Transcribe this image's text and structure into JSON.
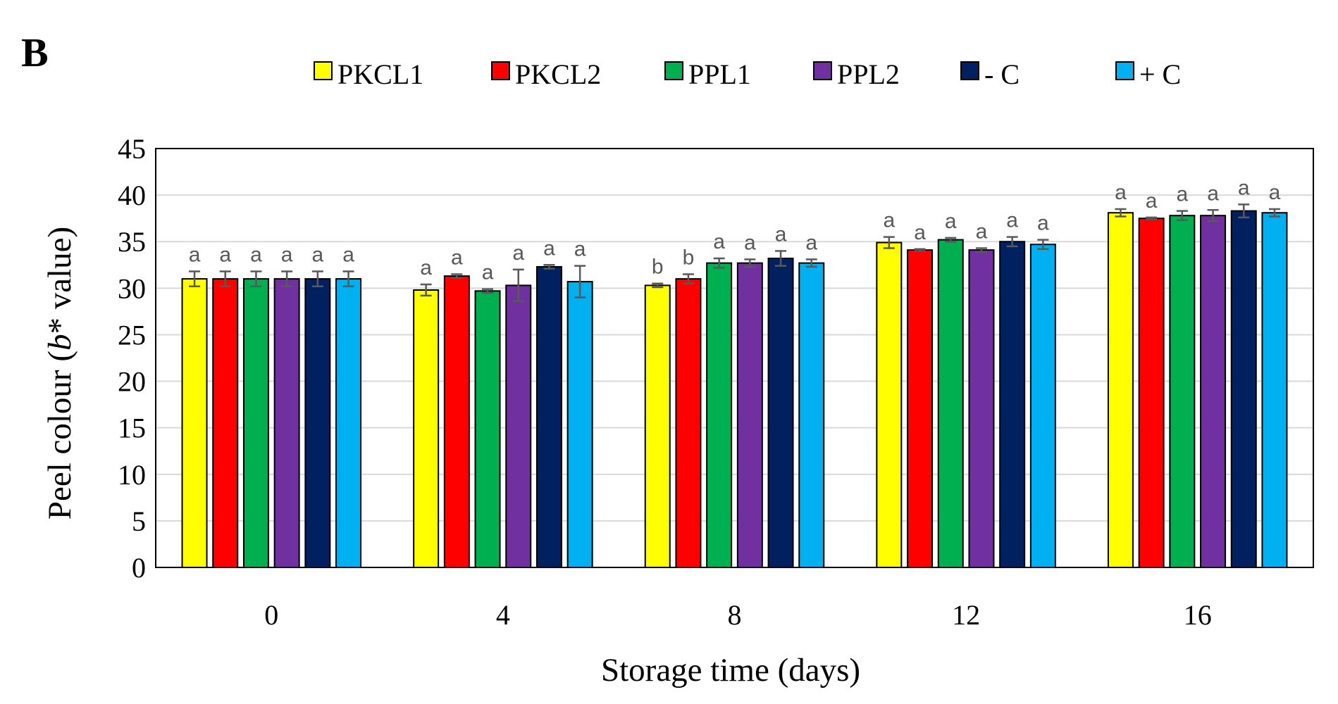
{
  "panel_label": "B",
  "chart_data": {
    "type": "bar",
    "xlabel": "Storage time (days)",
    "ylabel_pre": "Peel colour (",
    "ylabel_italic": "b",
    "ylabel_post": "* value)",
    "ylim": [
      0,
      45
    ],
    "yticks": [
      0,
      5,
      10,
      15,
      20,
      25,
      30,
      35,
      40,
      45
    ],
    "grid": true,
    "legend_position": "top",
    "categories": [
      "0",
      "4",
      "8",
      "12",
      "16"
    ],
    "series": [
      {
        "name": "PKCL1",
        "color": "#FFFF00",
        "values": [
          31.0,
          29.8,
          30.3,
          34.9,
          38.1
        ],
        "errors": [
          0.8,
          0.6,
          0.2,
          0.6,
          0.4
        ],
        "letters": [
          "a",
          "a",
          "b",
          "a",
          "a"
        ]
      },
      {
        "name": "PKCL2",
        "color": "#FF0000",
        "values": [
          31.0,
          31.3,
          31.0,
          34.1,
          37.5
        ],
        "errors": [
          0.8,
          0.2,
          0.5,
          0.1,
          0.1
        ],
        "letters": [
          "a",
          "a",
          "b",
          "a",
          "a"
        ]
      },
      {
        "name": "PPL1",
        "color": "#00B050",
        "values": [
          31.0,
          29.7,
          32.7,
          35.2,
          37.8
        ],
        "errors": [
          0.8,
          0.2,
          0.5,
          0.2,
          0.5
        ],
        "letters": [
          "a",
          "a",
          "a",
          "a",
          "a"
        ]
      },
      {
        "name": "PPL2",
        "color": "#7030A0",
        "values": [
          31.0,
          30.3,
          32.7,
          34.1,
          37.8
        ],
        "errors": [
          0.8,
          1.7,
          0.4,
          0.2,
          0.6
        ],
        "letters": [
          "a",
          "a",
          "a",
          "a",
          "a"
        ]
      },
      {
        "name": "- C",
        "color": "#002060",
        "values": [
          31.0,
          32.3,
          33.2,
          35.0,
          38.3
        ],
        "errors": [
          0.8,
          0.2,
          0.8,
          0.5,
          0.7
        ],
        "letters": [
          "a",
          "a",
          "a",
          "a",
          "a"
        ]
      },
      {
        "name": "+ C",
        "color": "#00B0F0",
        "values": [
          31.0,
          30.7,
          32.7,
          34.7,
          38.1
        ],
        "errors": [
          0.8,
          1.7,
          0.4,
          0.5,
          0.4
        ],
        "letters": [
          "a",
          "a",
          "a",
          "a",
          "a"
        ]
      }
    ]
  }
}
